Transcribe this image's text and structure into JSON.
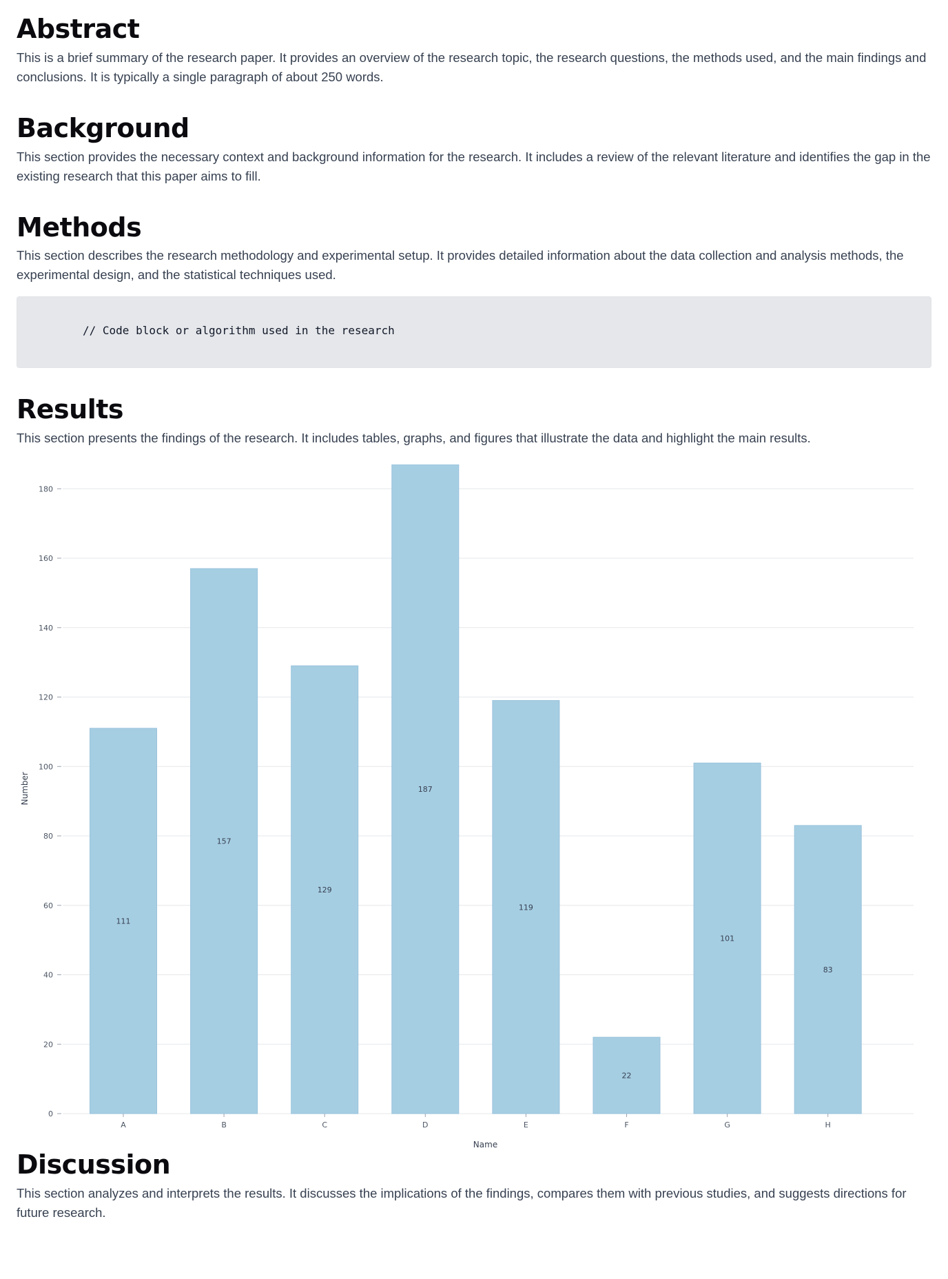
{
  "sections": {
    "abstract": {
      "title": "Abstract",
      "body": "This is a brief summary of the research paper. It provides an overview of the research topic, the research questions, the methods used, and the main findings and conclusions. It is typically a single paragraph of about 250 words."
    },
    "background": {
      "title": "Background",
      "body": "This section provides the necessary context and background information for the research. It includes a review of the relevant literature and identifies the gap in the existing research that this paper aims to fill."
    },
    "methods": {
      "title": "Methods",
      "body": "This section describes the research methodology and experimental setup. It provides detailed information about the data collection and analysis methods, the experimental design, and the statistical techniques used.",
      "code": "// Code block or algorithm used in the research"
    },
    "results": {
      "title": "Results",
      "body": "This section presents the findings of the research. It includes tables, graphs, and figures that illustrate the data and highlight the main results."
    },
    "discussion": {
      "title": "Discussion",
      "body": "This section analyzes and interprets the results. It discusses the implications of the findings, compares them with previous studies, and suggests directions for future research."
    }
  },
  "chart_data": {
    "type": "bar",
    "categories": [
      "A",
      "B",
      "C",
      "D",
      "E",
      "F",
      "G",
      "H"
    ],
    "values": [
      111,
      157,
      129,
      187,
      119,
      22,
      101,
      83
    ],
    "title": "",
    "xlabel": "Name",
    "ylabel": "Number",
    "ylim": [
      0,
      187
    ],
    "yticks": [
      0,
      20,
      40,
      60,
      80,
      100,
      120,
      140,
      160,
      180
    ],
    "grid": true,
    "bar_color": "#a6cee3",
    "data_labels": "inside-center"
  }
}
